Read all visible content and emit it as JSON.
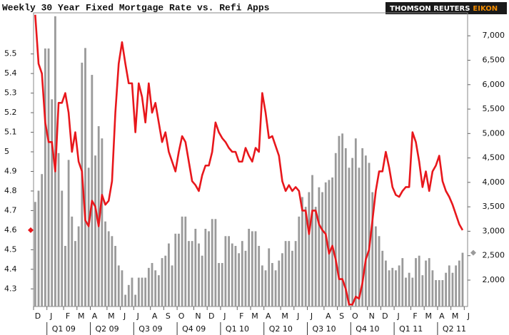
{
  "chart_data": {
    "type": "bar-line",
    "title": "Weekly 30 Year Fixed Mortgage Rate vs. Refi Apps",
    "logo": {
      "name": "THOMSON REUTERS",
      "product": "EIKON"
    },
    "categories": [
      "D",
      null,
      null,
      null,
      "J",
      null,
      null,
      null,
      null,
      "F",
      null,
      null,
      null,
      "M",
      null,
      null,
      null,
      "A",
      null,
      null,
      null,
      null,
      "M",
      null,
      null,
      null,
      "J",
      null,
      null,
      null,
      "J",
      null,
      null,
      null,
      null,
      "A",
      null,
      null,
      null,
      "S",
      null,
      null,
      null,
      "O",
      null,
      null,
      null,
      null,
      "N",
      null,
      null,
      null,
      "D",
      null,
      null,
      null,
      "J",
      null,
      null,
      null,
      null,
      "F",
      null,
      null,
      null,
      "M",
      null,
      null,
      null,
      "A",
      null,
      null,
      null,
      null,
      "M",
      null,
      null,
      null,
      "J",
      null,
      null,
      null,
      "J",
      null,
      null,
      null,
      null,
      "A",
      null,
      null,
      null,
      "S",
      null,
      null,
      null,
      "O",
      null,
      null,
      null,
      null,
      "N",
      null,
      null,
      null,
      "D",
      null,
      null,
      null,
      "J",
      null,
      null,
      null,
      null,
      "F",
      null,
      null,
      null,
      "M",
      null,
      null,
      null,
      "A",
      null,
      null,
      null,
      "M",
      null,
      null,
      null,
      "J"
    ],
    "quarters": [
      "Q1 09",
      "Q2 09",
      "Q3 09",
      "Q4 09",
      "Q1 10",
      "Q2 10",
      "Q3 10",
      "Q4 10",
      "Q1 11",
      "Q2 11"
    ],
    "series": [
      {
        "type": "bar",
        "axis": "y2",
        "color": "#9a9a9a",
        "values": [
          3600,
          3830,
          4170,
          6740,
          6740,
          5700,
          7400,
          4600,
          3830,
          2700,
          4460,
          3300,
          2800,
          3100,
          6450,
          6750,
          4300,
          6200,
          4550,
          5150,
          4900,
          3200,
          3000,
          2900,
          2700,
          2300,
          2200,
          1700,
          1900,
          2050,
          1700,
          2050,
          2050,
          2050,
          2250,
          2350,
          2200,
          2100,
          2450,
          2500,
          2750,
          2300,
          2950,
          2950,
          3300,
          3300,
          2800,
          2800,
          3050,
          2750,
          2500,
          3050,
          3000,
          3250,
          3250,
          2350,
          2350,
          2900,
          2900,
          2750,
          2700,
          2550,
          2800,
          2600,
          3050,
          3000,
          3000,
          2700,
          2300,
          2200,
          2650,
          2350,
          2200,
          2400,
          2550,
          2800,
          2800,
          2600,
          2800,
          3300,
          3700,
          3500,
          3800,
          4150,
          3500,
          3900,
          3800,
          4000,
          4050,
          4100,
          4600,
          4950,
          5000,
          4700,
          4300,
          4500,
          4900,
          4300,
          4700,
          4550,
          4400,
          3800,
          3100,
          2900,
          2600,
          2400,
          2200,
          2250,
          2200,
          2300,
          2450,
          2050,
          2150,
          2050,
          2450,
          2500,
          2100,
          2400,
          2450,
          2200,
          2000,
          2000,
          2000,
          2150,
          2300,
          2150,
          2300,
          2400,
          2560,
          null
        ]
      },
      {
        "type": "line",
        "axis": "y",
        "color": "#e8171c",
        "values": [
          5.7,
          5.45,
          5.4,
          5.15,
          5.05,
          5.05,
          4.9,
          5.25,
          5.25,
          5.3,
          5.2,
          5.0,
          5.1,
          4.95,
          4.9,
          4.65,
          4.62,
          4.75,
          4.72,
          4.62,
          4.78,
          4.73,
          4.75,
          4.85,
          5.2,
          5.45,
          5.56,
          5.45,
          5.35,
          5.35,
          5.1,
          5.35,
          5.28,
          5.15,
          5.35,
          5.2,
          5.25,
          5.15,
          5.05,
          5.1,
          5.0,
          4.95,
          4.9,
          5.0,
          5.08,
          5.05,
          4.95,
          4.85,
          4.83,
          4.8,
          4.88,
          4.93,
          4.93,
          5.0,
          5.15,
          5.1,
          5.07,
          5.05,
          5.02,
          5.0,
          5.0,
          4.95,
          4.95,
          5.02,
          4.98,
          4.95,
          5.02,
          5.0,
          5.3,
          5.2,
          5.07,
          5.08,
          5.03,
          4.98,
          4.85,
          4.8,
          4.83,
          4.8,
          4.82,
          4.8,
          4.7,
          4.7,
          4.58,
          4.7,
          4.7,
          4.63,
          4.6,
          4.58,
          4.48,
          4.52,
          4.45,
          4.35,
          4.35,
          4.3,
          4.22,
          4.22,
          4.26,
          4.25,
          4.33,
          4.45,
          4.5,
          4.65,
          4.8,
          4.9,
          4.9,
          5.0,
          4.92,
          4.82,
          4.78,
          4.77,
          4.8,
          4.82,
          4.82,
          5.1,
          5.05,
          4.95,
          4.82,
          4.9,
          4.8,
          4.9,
          4.93,
          4.98,
          4.85,
          4.8,
          4.77,
          4.73,
          4.68,
          4.63,
          4.6,
          null
        ]
      }
    ],
    "ylim": [
      4.21,
      5.71
    ],
    "yticks": [
      4.3,
      4.4,
      4.5,
      4.6,
      4.7,
      4.8,
      4.9,
      5,
      5.1,
      5.2,
      5.3,
      5.4,
      5.5
    ],
    "y2lim": [
      1460,
      7470
    ],
    "y2ticks": [
      {
        "value": 2000,
        "label": "2,000"
      },
      {
        "value": 2500,
        "label": "2,500"
      },
      {
        "value": 3000,
        "label": "3,000"
      },
      {
        "value": 3500,
        "label": "3,500"
      },
      {
        "value": 4000,
        "label": "4,000"
      },
      {
        "value": 4500,
        "label": "4,500"
      },
      {
        "value": 5000,
        "label": "5,000"
      },
      {
        "value": 5500,
        "label": "5,500"
      },
      {
        "value": 6000,
        "label": "6,000"
      },
      {
        "value": 6500,
        "label": "6,500"
      },
      {
        "value": 7000,
        "label": "7,000"
      }
    ]
  }
}
